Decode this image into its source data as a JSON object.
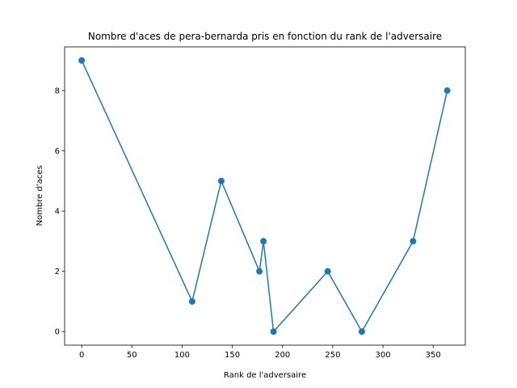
{
  "chart_data": {
    "type": "line",
    "title": "Nombre d'aces de pera-bernarda pris en fonction du rank de l'adversaire",
    "xlabel": "Rank de l'adversaire",
    "ylabel": "Nombre d'aces",
    "xlim": [
      -17,
      382
    ],
    "ylim": [
      -0.45,
      9.45
    ],
    "xticks": [
      0,
      50,
      100,
      150,
      200,
      250,
      300,
      350
    ],
    "yticks": [
      0,
      2,
      4,
      6,
      8
    ],
    "grid": false,
    "color": "#1f77b4",
    "series": [
      {
        "x": [
          0,
          110,
          139,
          177,
          181,
          191,
          245,
          279,
          330,
          364
        ],
        "y": [
          9,
          1,
          5,
          2,
          3,
          0,
          2,
          0,
          3,
          8
        ]
      }
    ]
  }
}
